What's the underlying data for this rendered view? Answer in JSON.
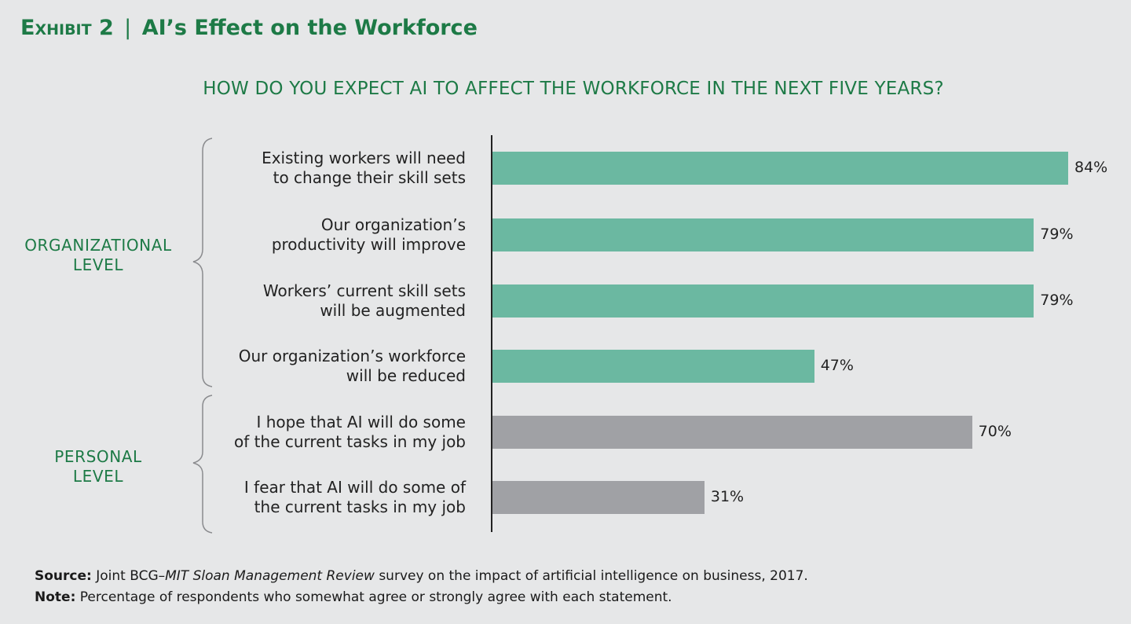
{
  "header": {
    "exhibit_label": "Exhibit 2",
    "separator": "|",
    "title": "AI’s Effect on the Workforce"
  },
  "chart_data": {
    "type": "bar",
    "orientation": "horizontal",
    "title": "HOW DO YOU EXPECT AI TO AFFECT THE WORKFORCE IN THE NEXT FIVE YEARS?",
    "xlim": [
      0,
      100
    ],
    "unit": "%",
    "groups": [
      {
        "label_lines": [
          "ORGANIZATIONAL",
          "LEVEL"
        ],
        "color": "#6bb8a1"
      },
      {
        "label_lines": [
          "PERSONAL",
          "LEVEL"
        ],
        "color": "#a0a1a5"
      }
    ],
    "categories": [
      {
        "lines": [
          "Existing workers will need",
          "to change their skill sets"
        ],
        "value": 84,
        "value_label": "84%",
        "group": 0
      },
      {
        "lines": [
          "Our organization’s",
          "productivity will improve"
        ],
        "value": 79,
        "value_label": "79%",
        "group": 0
      },
      {
        "lines": [
          "Workers’ current skill sets",
          "will be augmented"
        ],
        "value": 79,
        "value_label": "79%",
        "group": 0
      },
      {
        "lines": [
          "Our organization’s workforce",
          "will be reduced"
        ],
        "value": 47,
        "value_label": "47%",
        "group": 0
      },
      {
        "lines": [
          "I hope that AI will do some",
          "of the current tasks in my job"
        ],
        "value": 70,
        "value_label": "70%",
        "group": 1
      },
      {
        "lines": [
          "I fear that AI will do some of",
          "the current tasks in my job"
        ],
        "value": 31,
        "value_label": "31%",
        "group": 1
      }
    ]
  },
  "footer": {
    "source_label": "Source:",
    "source_pre": "Joint BCG–",
    "source_italic": "MIT Sloan Management Review",
    "source_post": " survey on the impact of artificial intelligence on business, 2017.",
    "note_label": "Note:",
    "note_text": "Percentage of respondents who somewhat agree or strongly agree with each statement."
  }
}
